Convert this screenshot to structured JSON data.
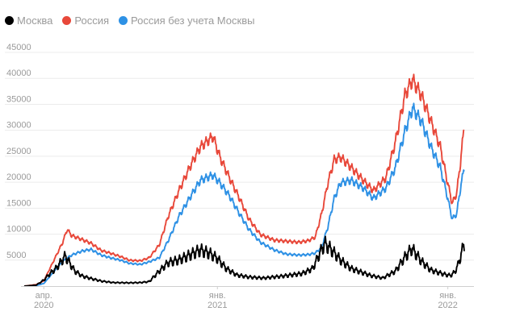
{
  "chart_data": {
    "type": "line",
    "title": "",
    "xlabel": "",
    "ylabel": "",
    "ylim": [
      0,
      45000
    ],
    "yticks": [
      5000,
      10000,
      15000,
      20000,
      25000,
      30000,
      35000,
      40000,
      45000
    ],
    "xlim": [
      "2020-03-01",
      "2022-01-27"
    ],
    "xticks": [
      {
        "date": "2020-04-01",
        "line1": "апр.",
        "line2": "2020"
      },
      {
        "date": "2021-01-01",
        "line1": "янв.",
        "line2": "2021"
      },
      {
        "date": "2022-01-01",
        "line1": "янв.",
        "line2": "2022"
      }
    ],
    "grid": true,
    "legend_position": "top-left",
    "series": [
      {
        "name": "Москва",
        "color": "#000000",
        "points": [
          [
            "2020-03-01",
            0
          ],
          [
            "2020-03-20",
            200
          ],
          [
            "2020-04-01",
            1200
          ],
          [
            "2020-04-10",
            2400
          ],
          [
            "2020-04-20",
            3500
          ],
          [
            "2020-04-28",
            4800
          ],
          [
            "2020-05-05",
            6000
          ],
          [
            "2020-05-10",
            5000
          ],
          [
            "2020-05-20",
            3000
          ],
          [
            "2020-06-01",
            2000
          ],
          [
            "2020-06-15",
            1500
          ],
          [
            "2020-07-01",
            1000
          ],
          [
            "2020-07-20",
            700
          ],
          [
            "2020-08-15",
            650
          ],
          [
            "2020-09-01",
            700
          ],
          [
            "2020-09-15",
            900
          ],
          [
            "2020-10-01",
            3000
          ],
          [
            "2020-10-15",
            4700
          ],
          [
            "2020-11-01",
            5200
          ],
          [
            "2020-11-20",
            6300
          ],
          [
            "2020-12-05",
            7200
          ],
          [
            "2020-12-20",
            6500
          ],
          [
            "2021-01-01",
            5500
          ],
          [
            "2021-01-15",
            3500
          ],
          [
            "2021-02-01",
            2200
          ],
          [
            "2021-02-20",
            1800
          ],
          [
            "2021-03-15",
            1600
          ],
          [
            "2021-04-15",
            2000
          ],
          [
            "2021-05-15",
            2500
          ],
          [
            "2021-06-01",
            3500
          ],
          [
            "2021-06-10",
            6000
          ],
          [
            "2021-06-20",
            8500
          ],
          [
            "2021-07-01",
            7200
          ],
          [
            "2021-07-15",
            5200
          ],
          [
            "2021-08-01",
            3500
          ],
          [
            "2021-09-01",
            2100
          ],
          [
            "2021-09-20",
            1600
          ],
          [
            "2021-10-10",
            3000
          ],
          [
            "2021-10-25",
            5800
          ],
          [
            "2021-11-05",
            7500
          ],
          [
            "2021-11-20",
            5000
          ],
          [
            "2021-12-05",
            3200
          ],
          [
            "2021-12-25",
            2400
          ],
          [
            "2022-01-05",
            2100
          ],
          [
            "2022-01-12",
            2800
          ],
          [
            "2022-01-18",
            4500
          ],
          [
            "2022-01-23",
            6800
          ],
          [
            "2022-01-27",
            8400
          ]
        ]
      },
      {
        "name": "Россия",
        "color": "#e8483a",
        "points": [
          [
            "2020-03-01",
            0
          ],
          [
            "2020-03-20",
            300
          ],
          [
            "2020-04-01",
            1000
          ],
          [
            "2020-04-15",
            4500
          ],
          [
            "2020-05-01",
            8500
          ],
          [
            "2020-05-08",
            11000
          ],
          [
            "2020-05-15",
            9800
          ],
          [
            "2020-06-01",
            9000
          ],
          [
            "2020-06-15",
            8300
          ],
          [
            "2020-07-01",
            6900
          ],
          [
            "2020-07-15",
            6400
          ],
          [
            "2020-08-01",
            5700
          ],
          [
            "2020-08-15",
            5000
          ],
          [
            "2020-09-01",
            4900
          ],
          [
            "2020-09-15",
            5500
          ],
          [
            "2020-10-01",
            8000
          ],
          [
            "2020-10-15",
            13500
          ],
          [
            "2020-11-01",
            18500
          ],
          [
            "2020-11-20",
            23500
          ],
          [
            "2020-12-05",
            27000
          ],
          [
            "2020-12-25",
            29000
          ],
          [
            "2021-01-05",
            25000
          ],
          [
            "2021-01-20",
            21000
          ],
          [
            "2021-02-05",
            17000
          ],
          [
            "2021-02-20",
            13000
          ],
          [
            "2021-03-10",
            10000
          ],
          [
            "2021-04-01",
            8900
          ],
          [
            "2021-04-20",
            8700
          ],
          [
            "2021-05-10",
            8500
          ],
          [
            "2021-05-25",
            8800
          ],
          [
            "2021-06-05",
            9500
          ],
          [
            "2021-06-15",
            14000
          ],
          [
            "2021-06-25",
            20000
          ],
          [
            "2021-07-05",
            24500
          ],
          [
            "2021-07-15",
            25000
          ],
          [
            "2021-08-01",
            23000
          ],
          [
            "2021-08-20",
            20500
          ],
          [
            "2021-09-05",
            18500
          ],
          [
            "2021-09-25",
            21000
          ],
          [
            "2021-10-10",
            28000
          ],
          [
            "2021-10-25",
            37000
          ],
          [
            "2021-11-06",
            40000
          ],
          [
            "2021-11-20",
            37000
          ],
          [
            "2021-12-05",
            32000
          ],
          [
            "2021-12-20",
            27000
          ],
          [
            "2021-12-30",
            21000
          ],
          [
            "2022-01-08",
            16000
          ],
          [
            "2022-01-15",
            18000
          ],
          [
            "2022-01-21",
            24000
          ],
          [
            "2022-01-27",
            31200
          ]
        ]
      },
      {
        "name": "Россия без учета Москвы",
        "color": "#2e91e5",
        "points": [
          [
            "2020-03-01",
            0
          ],
          [
            "2020-03-20",
            100
          ],
          [
            "2020-04-01",
            500
          ],
          [
            "2020-04-15",
            2500
          ],
          [
            "2020-05-01",
            4800
          ],
          [
            "2020-05-15",
            6000
          ],
          [
            "2020-06-01",
            6800
          ],
          [
            "2020-06-15",
            7100
          ],
          [
            "2020-07-01",
            6000
          ],
          [
            "2020-07-15",
            5500
          ],
          [
            "2020-08-01",
            5000
          ],
          [
            "2020-08-15",
            4400
          ],
          [
            "2020-09-01",
            4200
          ],
          [
            "2020-09-15",
            4700
          ],
          [
            "2020-10-01",
            5500
          ],
          [
            "2020-10-15",
            8800
          ],
          [
            "2020-11-01",
            13500
          ],
          [
            "2020-11-20",
            17500
          ],
          [
            "2020-12-05",
            20500
          ],
          [
            "2020-12-25",
            21500
          ],
          [
            "2021-01-05",
            20000
          ],
          [
            "2021-01-20",
            17500
          ],
          [
            "2021-02-05",
            14000
          ],
          [
            "2021-02-20",
            11000
          ],
          [
            "2021-03-10",
            8500
          ],
          [
            "2021-04-01",
            7000
          ],
          [
            "2021-04-20",
            6200
          ],
          [
            "2021-05-10",
            6000
          ],
          [
            "2021-05-25",
            6100
          ],
          [
            "2021-06-05",
            6400
          ],
          [
            "2021-06-15",
            7500
          ],
          [
            "2021-06-25",
            11500
          ],
          [
            "2021-07-05",
            17000
          ],
          [
            "2021-07-15",
            20000
          ],
          [
            "2021-08-01",
            20500
          ],
          [
            "2021-08-20",
            19000
          ],
          [
            "2021-09-05",
            17000
          ],
          [
            "2021-09-25",
            19000
          ],
          [
            "2021-10-10",
            23000
          ],
          [
            "2021-10-25",
            30000
          ],
          [
            "2021-11-06",
            34500
          ],
          [
            "2021-11-20",
            32000
          ],
          [
            "2021-12-05",
            27000
          ],
          [
            "2021-12-20",
            23000
          ],
          [
            "2021-12-30",
            18000
          ],
          [
            "2022-01-08",
            13000
          ],
          [
            "2022-01-15",
            14000
          ],
          [
            "2022-01-21",
            19000
          ],
          [
            "2022-01-27",
            23000
          ]
        ]
      }
    ]
  }
}
